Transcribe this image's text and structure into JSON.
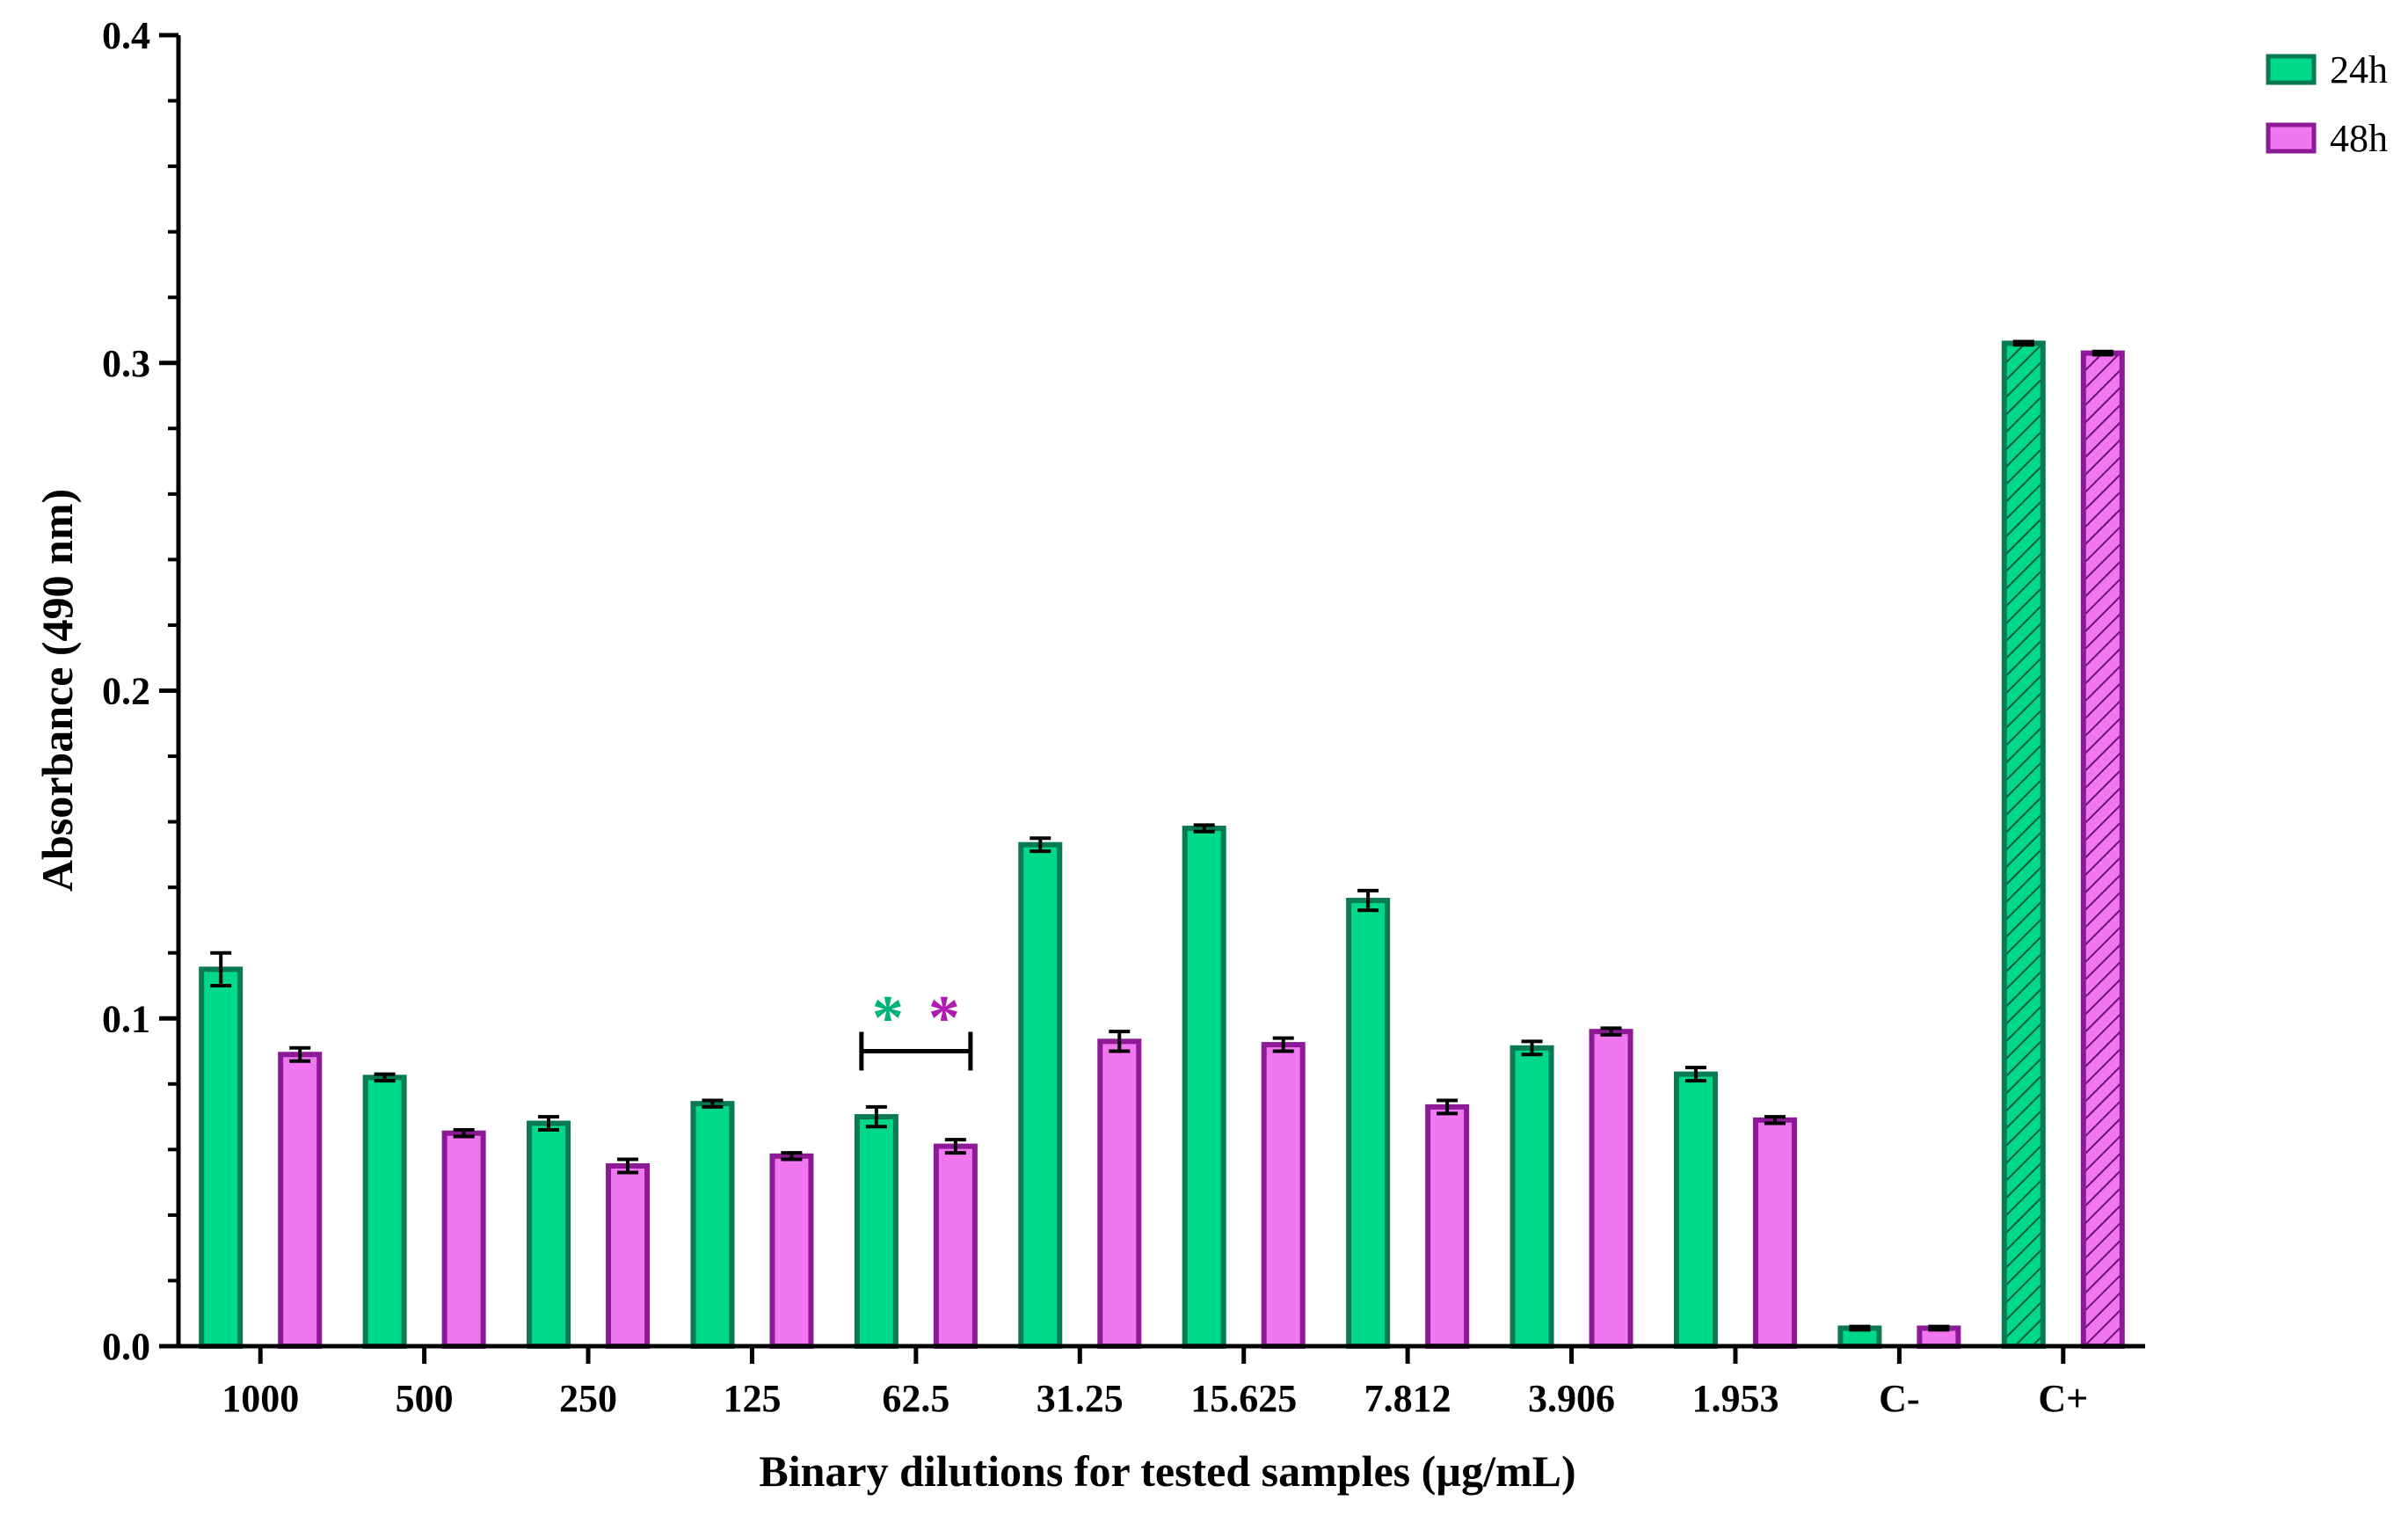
{
  "chart_data": {
    "type": "bar",
    "title": "",
    "xlabel": "Binary dilutions for tested samples (µg/mL)",
    "ylabel": "Absorbance (490 nm)",
    "ylim": [
      0,
      0.4
    ],
    "yticks": [
      0.0,
      0.1,
      0.2,
      0.3,
      0.4
    ],
    "ytick_labels": [
      "0.0",
      "0.1",
      "0.2",
      "0.3",
      "0.4"
    ],
    "categories": [
      "1000",
      "500",
      "250",
      "125",
      "62.5",
      "31.25",
      "15.625",
      "7.812",
      "3.906",
      "1.953",
      "C-",
      "C+"
    ],
    "series": [
      {
        "name": "24h",
        "fill": "#00d88a",
        "stroke": "#0a7a52",
        "values": [
          0.115,
          0.082,
          0.068,
          0.074,
          0.07,
          0.153,
          0.158,
          0.136,
          0.091,
          0.083,
          0.0055,
          0.306
        ],
        "errors": [
          0.005,
          0.001,
          0.002,
          0.001,
          0.003,
          0.002,
          0.001,
          0.003,
          0.002,
          0.002,
          0.0005,
          0.0005
        ]
      },
      {
        "name": "48h",
        "fill": "#f077f0",
        "stroke": "#8c1a96",
        "values": [
          0.089,
          0.065,
          0.055,
          0.058,
          0.061,
          0.093,
          0.092,
          0.073,
          0.096,
          0.069,
          0.0055,
          0.303
        ],
        "errors": [
          0.002,
          0.001,
          0.002,
          0.001,
          0.002,
          0.003,
          0.002,
          0.002,
          0.001,
          0.001,
          0.0005,
          0.0005
        ]
      }
    ],
    "hatched_categories": [
      "C+"
    ],
    "legend_position": "top-right",
    "annotations": [
      {
        "type": "significance",
        "category": "62.5",
        "stars": [
          "*",
          "*"
        ],
        "star_colors": [
          "#00b37a",
          "#b01cb0"
        ],
        "value": 0.09
      }
    ]
  }
}
